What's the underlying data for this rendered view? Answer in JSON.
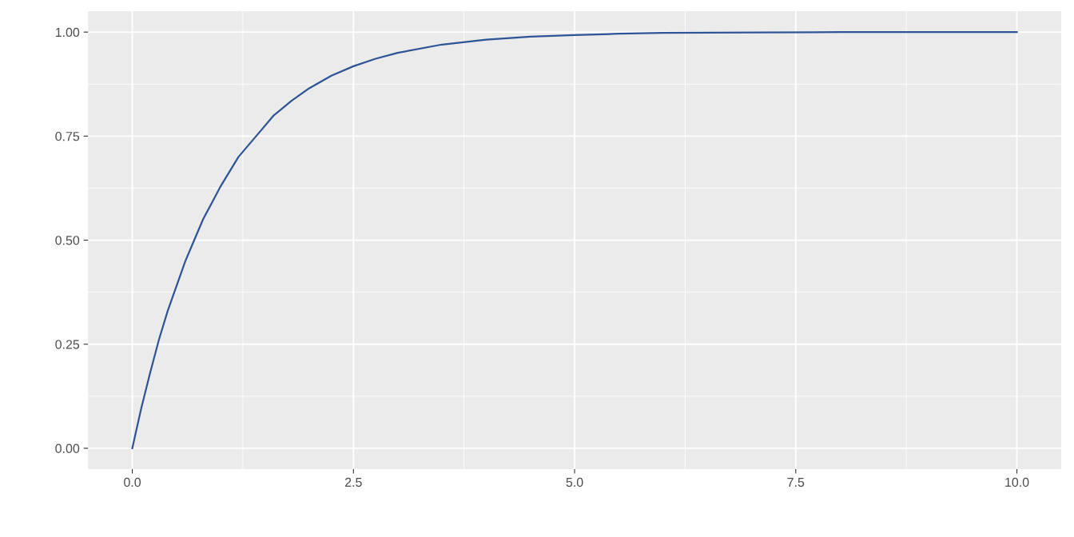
{
  "chart_data": {
    "type": "line",
    "x": [
      0,
      0.1,
      0.2,
      0.3,
      0.4,
      0.5,
      0.6,
      0.7,
      0.8,
      0.9,
      1.0,
      1.2,
      1.4,
      1.6,
      1.8,
      2.0,
      2.25,
      2.5,
      2.75,
      3.0,
      3.5,
      4.0,
      4.5,
      5.0,
      5.5,
      6.0,
      7.0,
      8.0,
      9.0,
      10.0
    ],
    "series": [
      {
        "color": "#2e5496",
        "values": [
          0,
          0.095,
          0.18,
          0.26,
          0.33,
          0.39,
          0.45,
          0.5,
          0.55,
          0.59,
          0.63,
          0.7,
          0.75,
          0.8,
          0.835,
          0.865,
          0.895,
          0.918,
          0.936,
          0.95,
          0.97,
          0.982,
          0.989,
          0.993,
          0.996,
          0.998,
          0.999,
          1.0,
          1.0,
          1.0
        ]
      }
    ],
    "xlim": [
      -0.5,
      10.5
    ],
    "ylim": [
      -0.05,
      1.05
    ],
    "xticks": [
      {
        "value": 0,
        "label": "0.0"
      },
      2.5,
      {
        "value": 5,
        "label": "5.0"
      },
      7.5,
      {
        "value": 10,
        "label": "10.0"
      }
    ],
    "yticks": [
      {
        "value": 0,
        "label": "0.00"
      },
      0.25,
      {
        "value": 0.5,
        "label": "0.50"
      },
      0.75,
      {
        "value": 1,
        "label": "1.00"
      }
    ],
    "grid": true,
    "legend": false
  }
}
